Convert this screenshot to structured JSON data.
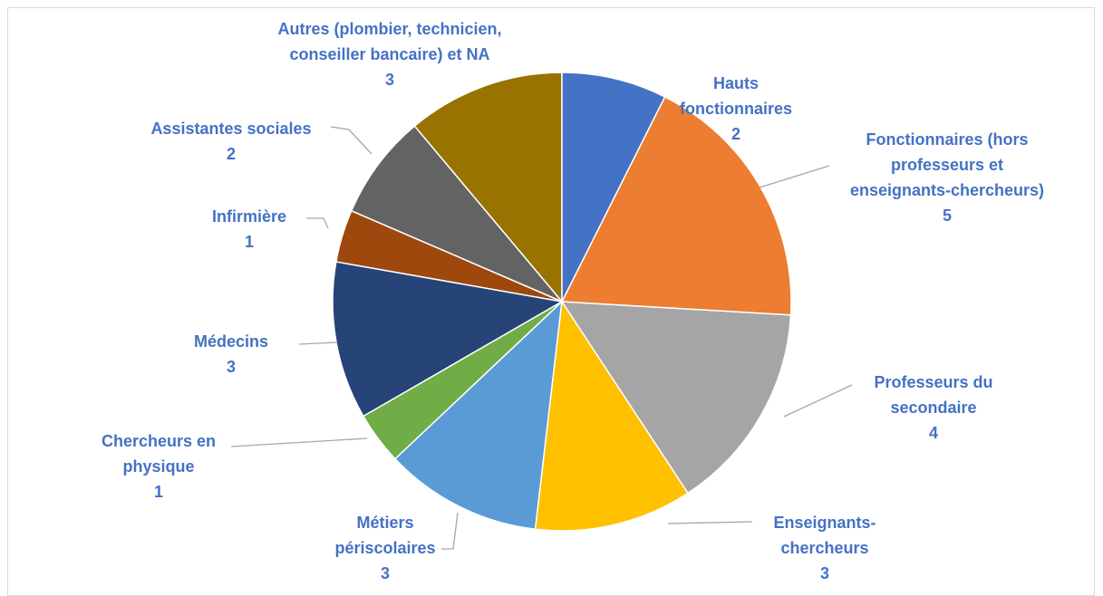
{
  "chart_data": {
    "type": "pie",
    "categories": [
      "Hauts fonctionnaires",
      "Fonctionnaires (hors professeurs et enseignants-chercheurs)",
      "Professeurs du secondaire",
      "Enseignants-chercheurs",
      "Métiers périscolaires",
      "Chercheurs en physique",
      "Médecins",
      "Infirmière",
      "Assistantes sociales",
      "Autres (plombier, technicien, conseiller bancaire) et NA"
    ],
    "values": [
      2,
      5,
      4,
      3,
      3,
      1,
      3,
      1,
      2,
      3
    ],
    "colors": [
      "#4472c4",
      "#ed7d31",
      "#a5a5a5",
      "#ffc000",
      "#5b9bd5",
      "#70ad47",
      "#264478",
      "#9e480e",
      "#636363",
      "#997300"
    ]
  }
}
